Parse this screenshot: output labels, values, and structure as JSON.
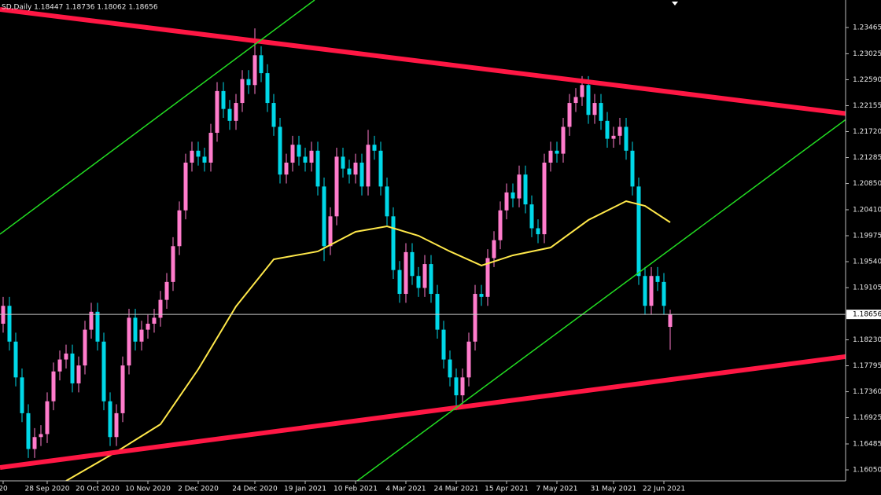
{
  "chart_data": {
    "type": "candlestick",
    "title": "SD,Daily  1.18447 1.18736 1.18062 1.18656",
    "categories": [
      "20",
      null,
      null,
      null,
      null,
      null,
      null,
      "28 Sep 2020",
      null,
      null,
      null,
      null,
      null,
      null,
      null,
      "20 Oct 2020",
      null,
      null,
      null,
      null,
      null,
      null,
      null,
      "10 Nov 2020",
      null,
      null,
      null,
      null,
      null,
      null,
      null,
      "2 Dec 2020",
      null,
      null,
      null,
      null,
      null,
      null,
      null,
      null,
      "24 Dec 2020",
      null,
      null,
      null,
      null,
      null,
      null,
      null,
      "19 Jan 2021",
      null,
      null,
      null,
      null,
      null,
      null,
      null,
      "10 Feb 2021",
      null,
      null,
      null,
      null,
      null,
      null,
      null,
      "4 Mar 2021",
      null,
      null,
      null,
      null,
      null,
      null,
      null,
      "24 Mar 2021",
      null,
      null,
      null,
      null,
      null,
      null,
      null,
      "15 Apr 2021",
      null,
      null,
      null,
      null,
      null,
      null,
      null,
      "7 May 2021",
      null,
      null,
      null,
      null,
      null,
      null,
      null,
      null,
      "31 May 2021",
      null,
      null,
      null,
      null,
      null,
      null,
      null,
      "22 Jun 2021",
      null
    ],
    "open": [
      1.185,
      1.188,
      1.182,
      1.176,
      1.17,
      1.164,
      1.166,
      1.1665,
      1.172,
      1.177,
      1.179,
      1.18,
      1.175,
      1.178,
      1.184,
      1.187,
      1.182,
      1.172,
      1.166,
      1.17,
      1.178,
      1.186,
      1.182,
      1.184,
      1.185,
      1.186,
      1.189,
      1.192,
      1.198,
      1.204,
      1.212,
      1.214,
      1.213,
      1.212,
      1.217,
      1.224,
      1.221,
      1.219,
      1.222,
      1.226,
      1.225,
      1.23,
      1.227,
      1.222,
      1.218,
      1.21,
      1.212,
      1.215,
      1.213,
      1.212,
      1.214,
      1.208,
      1.198,
      1.203,
      1.213,
      1.211,
      1.21,
      1.212,
      1.208,
      1.215,
      1.214,
      1.208,
      1.203,
      1.194,
      1.19,
      1.197,
      1.193,
      1.191,
      1.195,
      1.19,
      1.184,
      1.179,
      1.176,
      1.173,
      1.176,
      1.182,
      1.19,
      1.1895,
      1.196,
      1.199,
      1.204,
      1.207,
      1.206,
      1.21,
      1.205,
      1.201,
      1.2,
      1.212,
      1.214,
      1.2135,
      1.218,
      1.222,
      1.223,
      1.225,
      1.22,
      1.222,
      1.219,
      1.216,
      1.2165,
      1.218,
      1.214,
      1.208,
      1.193,
      1.188,
      1.193,
      1.192,
      1.18447
    ],
    "high": [
      1.1895,
      1.1895,
      1.1835,
      1.1775,
      1.1715,
      1.1675,
      1.168,
      1.1735,
      1.1785,
      1.1805,
      1.1815,
      1.1815,
      1.1795,
      1.1855,
      1.1885,
      1.1885,
      1.1835,
      1.1735,
      1.1715,
      1.1795,
      1.1875,
      1.1875,
      1.1855,
      1.1865,
      1.1875,
      1.1905,
      1.1935,
      1.1995,
      1.2055,
      1.2135,
      1.2155,
      1.2155,
      1.2145,
      1.2185,
      1.2255,
      1.2255,
      1.2225,
      1.2235,
      1.2275,
      1.2275,
      1.2345,
      1.2315,
      1.2285,
      1.2235,
      1.2195,
      1.2135,
      1.2165,
      1.2165,
      1.2145,
      1.2155,
      1.2155,
      1.2095,
      1.2045,
      1.2145,
      1.2145,
      1.2125,
      1.2135,
      1.2135,
      1.2175,
      1.2165,
      1.2155,
      1.2095,
      1.2045,
      1.1955,
      1.1985,
      1.1985,
      1.1945,
      1.1965,
      1.1965,
      1.1915,
      1.1855,
      1.1805,
      1.1775,
      1.1775,
      1.1835,
      1.1915,
      1.1915,
      1.1975,
      1.2005,
      1.2055,
      1.2085,
      1.2085,
      1.2115,
      1.2115,
      1.2065,
      1.2025,
      1.2135,
      1.2155,
      1.2155,
      1.2195,
      1.2235,
      1.2245,
      1.2265,
      1.2265,
      1.2235,
      1.2235,
      1.2205,
      1.218,
      1.2195,
      1.2195,
      1.2155,
      1.2095,
      1.1945,
      1.1945,
      1.1945,
      1.1935,
      1.18736
    ],
    "low": [
      1.1835,
      1.1805,
      1.1745,
      1.1685,
      1.1625,
      1.1625,
      1.1645,
      1.165,
      1.1705,
      1.1755,
      1.1775,
      1.1735,
      1.1735,
      1.1765,
      1.1825,
      1.1805,
      1.1705,
      1.1645,
      1.1645,
      1.1685,
      1.1765,
      1.1805,
      1.1805,
      1.1825,
      1.1835,
      1.1845,
      1.1875,
      1.1905,
      1.1965,
      1.2025,
      1.2105,
      1.2115,
      1.2105,
      1.2105,
      1.2155,
      1.2195,
      1.2175,
      1.2175,
      1.2205,
      1.2235,
      1.2235,
      1.2255,
      1.2205,
      1.2165,
      1.2085,
      1.2085,
      1.2105,
      1.2115,
      1.2105,
      1.2105,
      1.2065,
      1.1955,
      1.1965,
      1.2015,
      1.2095,
      1.2085,
      1.2085,
      1.2065,
      1.2065,
      1.2125,
      1.2065,
      1.2015,
      1.1925,
      1.1885,
      1.1885,
      1.1915,
      1.1895,
      1.1895,
      1.1885,
      1.1825,
      1.1775,
      1.1745,
      1.1705,
      1.1715,
      1.1745,
      1.1805,
      1.188,
      1.188,
      1.1945,
      1.1975,
      1.2025,
      1.2045,
      1.2045,
      1.2035,
      1.1995,
      1.1985,
      1.1985,
      1.2105,
      1.212,
      1.212,
      1.2165,
      1.2205,
      1.2215,
      1.2185,
      1.2185,
      1.2175,
      1.2145,
      1.2145,
      1.215,
      1.2125,
      1.2065,
      1.1915,
      1.1865,
      1.1865,
      1.1905,
      1.1865,
      1.18062
    ],
    "close": [
      1.188,
      1.182,
      1.176,
      1.17,
      1.164,
      1.166,
      1.1665,
      1.172,
      1.177,
      1.179,
      1.18,
      1.175,
      1.178,
      1.184,
      1.187,
      1.182,
      1.172,
      1.166,
      1.17,
      1.178,
      1.186,
      1.182,
      1.184,
      1.185,
      1.186,
      1.189,
      1.192,
      1.198,
      1.204,
      1.212,
      1.214,
      1.213,
      1.212,
      1.217,
      1.224,
      1.221,
      1.219,
      1.222,
      1.226,
      1.225,
      1.23,
      1.227,
      1.222,
      1.218,
      1.21,
      1.212,
      1.215,
      1.213,
      1.212,
      1.214,
      1.208,
      1.198,
      1.203,
      1.213,
      1.211,
      1.21,
      1.212,
      1.208,
      1.215,
      1.214,
      1.208,
      1.203,
      1.194,
      1.19,
      1.197,
      1.193,
      1.191,
      1.195,
      1.19,
      1.184,
      1.179,
      1.176,
      1.173,
      1.176,
      1.182,
      1.19,
      1.1895,
      1.196,
      1.199,
      1.204,
      1.207,
      1.206,
      1.21,
      1.205,
      1.201,
      1.2,
      1.212,
      1.214,
      1.2135,
      1.218,
      1.222,
      1.223,
      1.225,
      1.22,
      1.222,
      1.219,
      1.216,
      1.2165,
      1.218,
      1.214,
      1.208,
      1.193,
      1.188,
      1.193,
      1.192,
      1.188,
      1.18656
    ],
    "up_color": "#ff7ccc",
    "down_color": "#00d8e8",
    "moving_average": {
      "color": "#ffe84a",
      "x": [
        10,
        18,
        25,
        31,
        37,
        43,
        50,
        56,
        61,
        66,
        71,
        76,
        81,
        87,
        93,
        99,
        102,
        106
      ],
      "values": [
        1.15866,
        1.16353,
        1.16814,
        1.17736,
        1.1879,
        1.1958,
        1.19712,
        1.20041,
        1.20133,
        1.19975,
        1.19712,
        1.19475,
        1.19646,
        1.19777,
        1.20238,
        1.20554,
        1.20475,
        1.20199
      ]
    },
    "trendlines": [
      {
        "color": "#ff1744",
        "x": [
          -0.5,
          139.5
        ],
        "y": [
          1.23768,
          1.2195
        ]
      },
      {
        "color": "#ff1744",
        "x": [
          -0.5,
          139.5
        ],
        "y": [
          1.1609,
          1.18026
        ]
      },
      {
        "color": "#22dd22",
        "x": [
          -0.5,
          49.5
        ],
        "y": [
          1.20001,
          1.23926
        ]
      },
      {
        "color": "#22dd22",
        "x": [
          55.75,
          135.1
        ],
        "y": [
          1.15826,
          1.22016
        ]
      }
    ],
    "current_price": 1.18656,
    "ylim": [
      1.15866,
      1.23926
    ],
    "yticks": [
      1.23465,
      1.23025,
      {
        "value": 1.2259,
        "label": "1.22590"
      },
      1.22155,
      {
        "value": 1.2172,
        "label": "1.21720"
      },
      1.21285,
      {
        "value": 1.2085,
        "label": "1.20850"
      },
      {
        "value": 1.2041,
        "label": "1.20410"
      },
      1.19975,
      {
        "value": 1.1954,
        "label": "1.19540"
      },
      1.19105,
      {
        "value": 1.1823,
        "label": "1.18230"
      },
      1.17795,
      {
        "value": 1.1736,
        "label": "1.17360"
      },
      1.16925,
      1.16485,
      {
        "value": 1.1605,
        "label": "1.16050"
      }
    ]
  }
}
